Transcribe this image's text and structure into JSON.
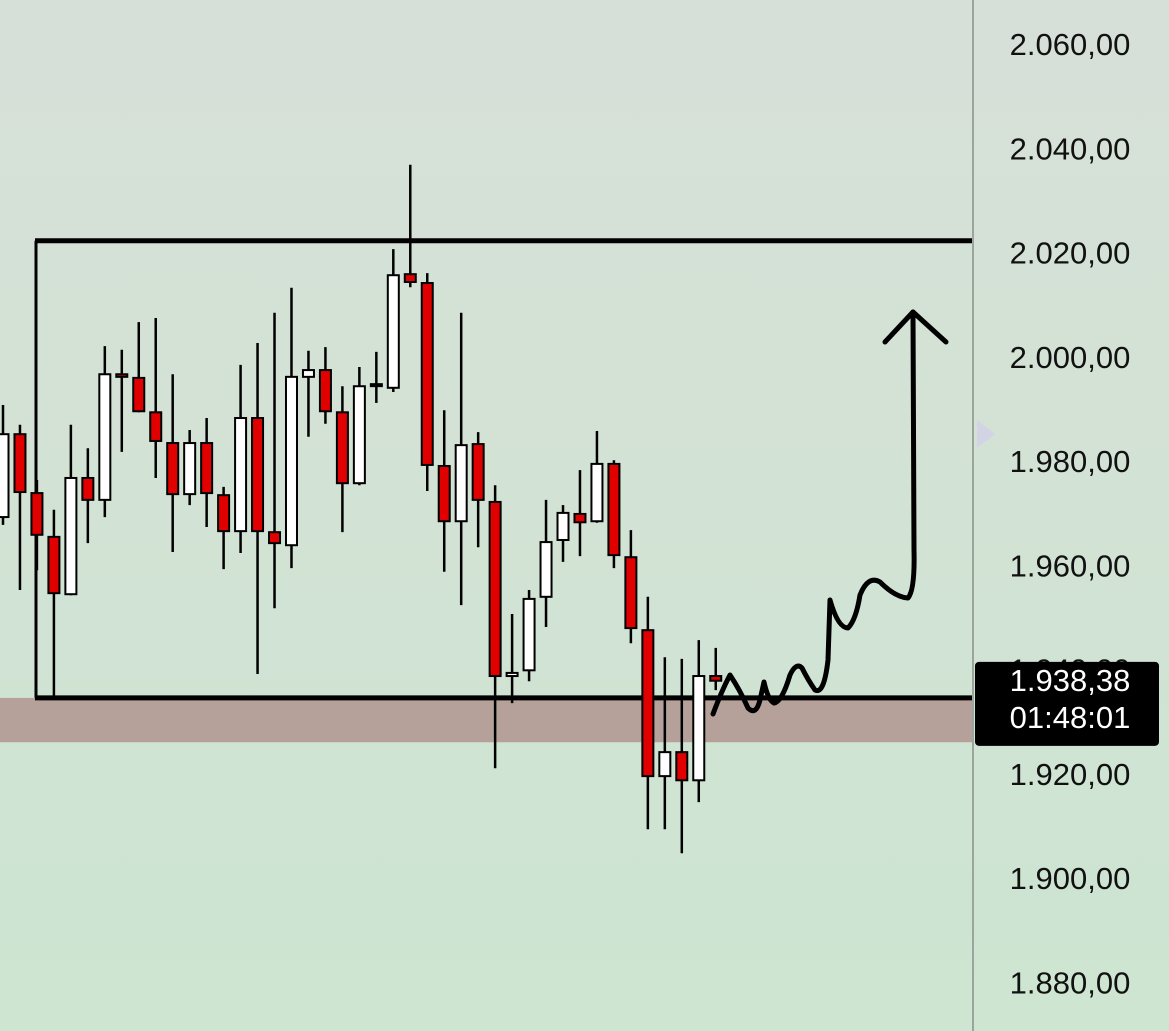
{
  "chart_data": {
    "type": "candlestick",
    "open": [
      1969.8,
      1985.7,
      1974.4,
      1966.0,
      1955.0,
      1977.3,
      1973.1,
      1997.2,
      1996.5,
      1989.9,
      1984.0,
      1974.2,
      1984.0,
      1974.0,
      1967.1,
      1988.8,
      1966.9,
      1964.4,
      1996.7,
      1998.0,
      1989.9,
      1976.3,
      1995.1,
      1994.6,
      2016.4,
      2014.7,
      1979.6,
      1969.0,
      1983.8,
      1972.7,
      1939.3,
      1940.4,
      1954.5,
      1965.4,
      1970.4,
      1969.0,
      1980.0,
      1962.1,
      1948.1,
      1920.1,
      1924.7,
      1919.3,
      1939.3
    ],
    "high": [
      1991.3,
      1987.5,
      1976.9,
      1971.2,
      1987.5,
      1983.0,
      2002.6,
      2001.9,
      2007.2,
      2008.0,
      1997.2,
      1986.5,
      1988.8,
      1975.6,
      1999.0,
      2003.2,
      2009.0,
      2013.8,
      2001.7,
      2002.4,
      1994.9,
      1998.6,
      2001.5,
      2021.2,
      2037.4,
      2016.6,
      1990.3,
      2009.0,
      1986.1,
      1975.9,
      1951.2,
      1955.8,
      1973.1,
      1972.1,
      1978.8,
      1986.3,
      1980.7,
      1967.3,
      1954.5,
      1942.9,
      1942.6,
      1946.2,
      1944.7
    ],
    "low": [
      1968.3,
      1955.8,
      1959.6,
      1935.1,
      1954.8,
      1964.8,
      1969.8,
      1982.3,
      1989.9,
      1977.3,
      1963.1,
      1972.1,
      1967.9,
      1959.8,
      1962.9,
      1939.7,
      1952.3,
      1960.0,
      1985.2,
      1987.7,
      1966.9,
      1975.9,
      1991.7,
      1993.8,
      2013.9,
      1974.8,
      1959.3,
      1952.9,
      1964.0,
      1921.6,
      1934.1,
      1938.3,
      1948.7,
      1961.2,
      1962.3,
      1968.7,
      1960.0,
      1945.6,
      1909.9,
      1909.9,
      1905.3,
      1915.1,
      1936.6
    ],
    "close": [
      1985.7,
      1974.6,
      1966.4,
      1955.2,
      1977.3,
      1973.1,
      1997.2,
      1996.7,
      1990.1,
      1984.4,
      1974.2,
      1984.0,
      1974.4,
      1967.1,
      1988.8,
      1967.1,
      1964.8,
      1996.7,
      1998.0,
      1990.1,
      1976.3,
      1994.9,
      1995.3,
      2016.2,
      2014.9,
      1979.8,
      1969.0,
      1983.6,
      1973.1,
      1939.3,
      1939.9,
      1954.1,
      1965.0,
      1970.6,
      1968.8,
      1980.0,
      1962.5,
      1948.5,
      1920.1,
      1924.7,
      1919.3,
      1939.3,
      1938.4
    ],
    "up_color": "#ffffff",
    "down_color": "#e00000",
    "ylim": [
      1871.2,
      2069.0
    ],
    "yticks": [
      {
        "value": 1880,
        "label": "1.880,00"
      },
      {
        "value": 1900,
        "label": "1.900,00"
      },
      {
        "value": 1920,
        "label": "1.920,00"
      },
      {
        "value": 1940,
        "label": "1.940,00"
      },
      {
        "value": 1960,
        "label": "1.960,00"
      },
      {
        "value": 1980,
        "label": "1.980,00"
      },
      {
        "value": 2000,
        "label": "2.000,00"
      },
      {
        "value": 2020,
        "label": "2.020,00"
      },
      {
        "value": 2040,
        "label": "2.040,00"
      },
      {
        "value": 2060,
        "label": "2.060,00"
      }
    ],
    "range": {
      "top": 2022.8,
      "bottom": 1935.1
    },
    "zone": {
      "from": 1926.6,
      "to": 1935.1,
      "color": "#b5a09a"
    },
    "last_price": {
      "value": 1938.38,
      "label": "1.938,38"
    },
    "countdown": "01:48:01"
  }
}
